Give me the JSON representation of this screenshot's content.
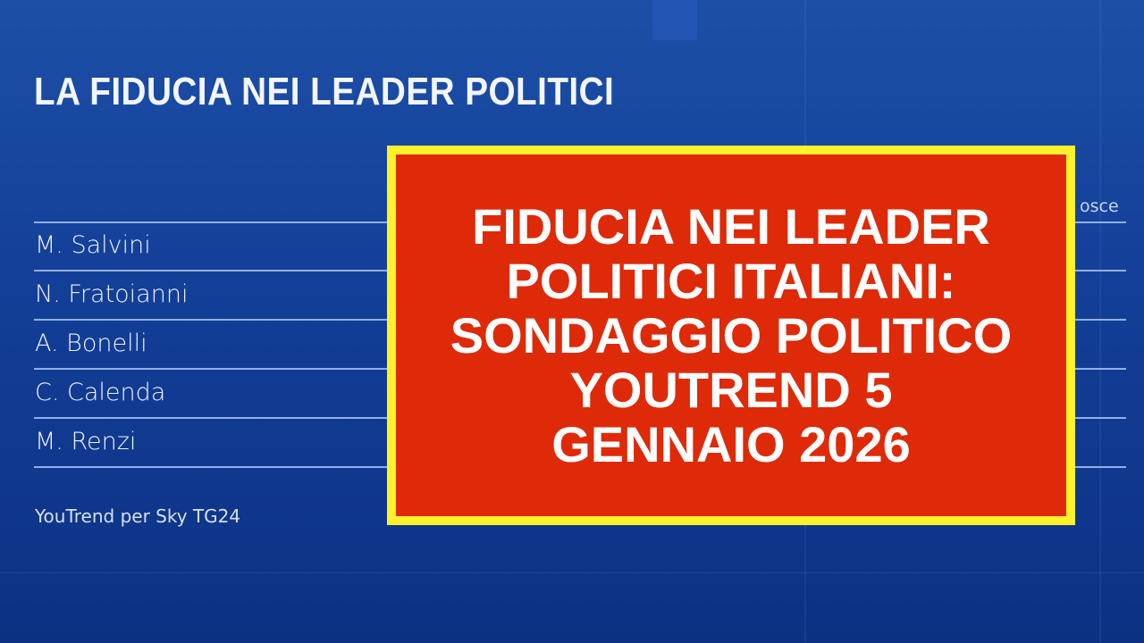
{
  "title": "LA FIDUCIA NEI LEADER POLITICI",
  "column_header_partial": "osce",
  "leaders": [
    "M. Salvini",
    "N. Fratoianni",
    "A. Bonelli",
    "C. Calenda",
    "M. Renzi"
  ],
  "source": "YouTrend per Sky TG24",
  "overlay": {
    "text": "FIDUCIA NEI LEADER\nPOLITICI ITALIANI:\nSONDAGGIO POLITICO\nYOUTREND 5\nGENNAIO 2026",
    "background_color": "#de2a08",
    "border_color": "#fff22a"
  }
}
